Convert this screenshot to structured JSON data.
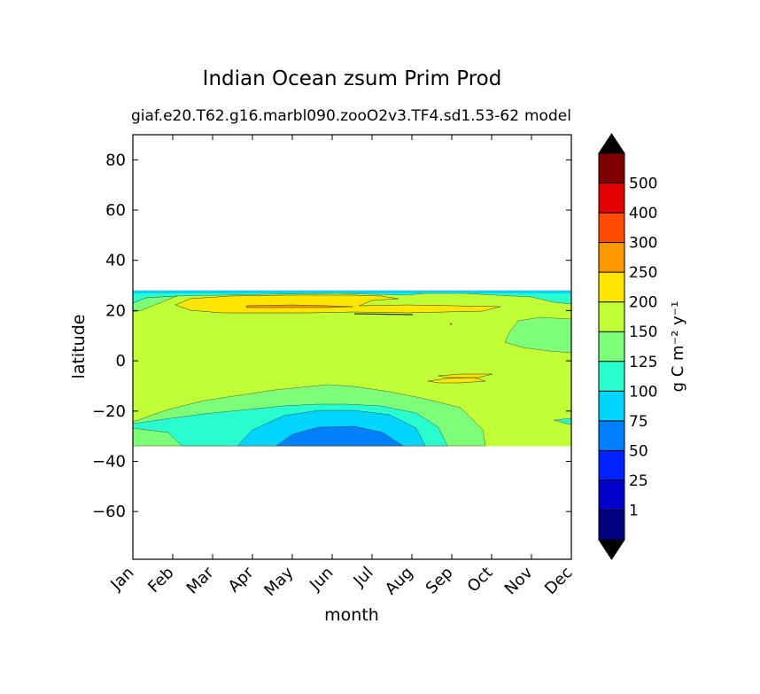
{
  "chart_data": {
    "type": "heatmap",
    "title": "Indian Ocean zsum Prim Prod",
    "subtitle_left": "giaf.e20.T62.g16.marbl090.zooO2v3.TF4.sd1.53-62",
    "subtitle_right": "model",
    "xlabel": "month",
    "ylabel": "latitude",
    "x_categories": [
      "Jan",
      "Feb",
      "Mar",
      "Apr",
      "May",
      "Jun",
      "Jul",
      "Aug",
      "Sep",
      "Oct",
      "Nov",
      "Dec"
    ],
    "ylim": [
      -79,
      90
    ],
    "yticks": [
      80,
      60,
      40,
      20,
      0,
      -20,
      -40,
      -60
    ],
    "ytick_labels": [
      "80",
      "60",
      "40",
      "20",
      "0",
      "−20",
      "−40",
      "−60"
    ],
    "data_lat_range": [
      -34,
      27
    ],
    "colorbar": {
      "label": "g C m⁻² y⁻¹",
      "extend": "both",
      "levels": [
        "1",
        "25",
        "50",
        "75",
        "100",
        "125",
        "150",
        "200",
        "250",
        "300",
        "400",
        "500"
      ],
      "colors": [
        "#000080",
        "#0000cd",
        "#0022ff",
        "#0080ff",
        "#00d4ff",
        "#29ffce",
        "#7dff7a",
        "#c1ff36",
        "#ffe600",
        "#ff9900",
        "#ff4a00",
        "#e30000",
        "#800000"
      ],
      "under_color": "#000000",
      "over_color": "#000000"
    },
    "regions": [
      {
        "name": "background",
        "color": "#c1ff36"
      },
      {
        "name": "north-edge",
        "color": "#29ffce"
      },
      {
        "name": "north-edge-strip",
        "color": "#00d4ff"
      },
      {
        "name": "north-lowband",
        "color": "#7dff7a"
      },
      {
        "name": "northern-maximum",
        "color": "#ffe600"
      },
      {
        "name": "northern-peak",
        "color": "#ff9900"
      },
      {
        "name": "east-lowband",
        "color": "#7dff7a"
      },
      {
        "name": "south-contour-1",
        "color": "#7dff7a"
      },
      {
        "name": "south-contour-2",
        "color": "#29ffce"
      },
      {
        "name": "south-contour-3",
        "color": "#00d4ff"
      },
      {
        "name": "south-contour-4",
        "color": "#0080ff"
      },
      {
        "name": "southeast-spot",
        "color": "#ffe600"
      }
    ]
  }
}
